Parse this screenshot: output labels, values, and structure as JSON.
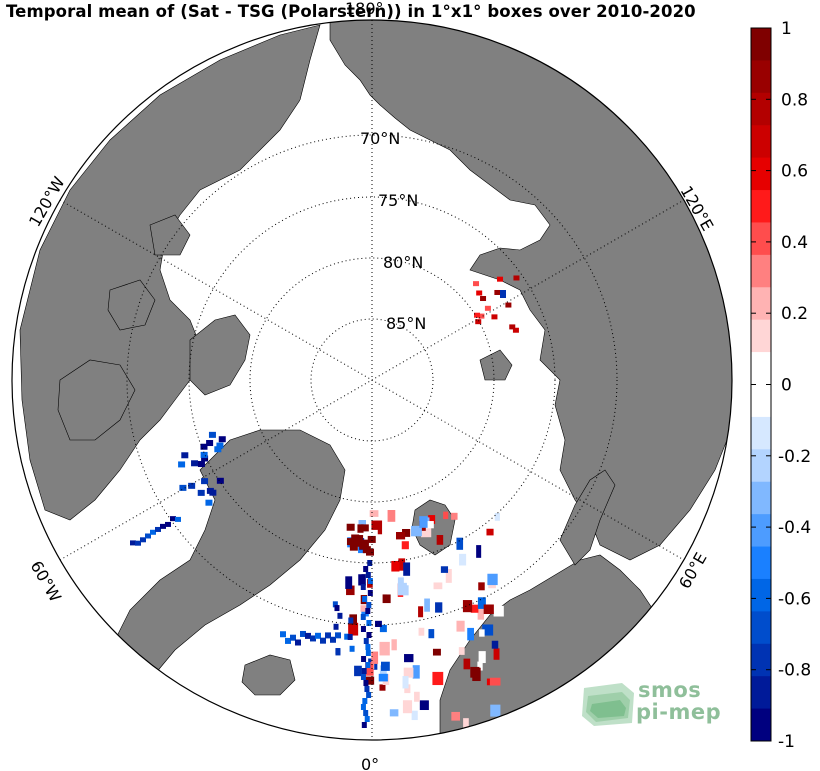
{
  "title": "Temporal mean of (Sat - TSG (Polarstern)) in 1°x1° boxes over 2010-2020",
  "map": {
    "projection": "north-polar-stereographic",
    "lat_labels": [
      "70°N",
      "75°N",
      "80°N",
      "85°N"
    ],
    "lat_circles": [
      70,
      75,
      80,
      85,
      87.5
    ],
    "lon_labels": [
      "180°",
      "120°E",
      "60°E",
      "0°",
      "60°W",
      "120°W"
    ],
    "land_color": "#808080",
    "ocean_color": "#ffffff"
  },
  "colorbar": {
    "min": -1,
    "max": 1,
    "tick_labels": [
      "1",
      "0.8",
      "0.6",
      "0.4",
      "0.2",
      "0",
      "-0.2",
      "-0.4",
      "-0.6",
      "-0.8",
      "-1"
    ],
    "colors": [
      "#7f0000",
      "#990000",
      "#b30000",
      "#cc0000",
      "#e60000",
      "#ff1a1a",
      "#ff4d4d",
      "#ff8080",
      "#ffb3b3",
      "#ffd6d6",
      "#ffffff",
      "#ffffff",
      "#d6e8ff",
      "#b3d4ff",
      "#80b8ff",
      "#4d9cff",
      "#1a80ff",
      "#0066e6",
      "#004dcc",
      "#0033b3",
      "#001a99",
      "#00007f"
    ]
  },
  "logo": {
    "line1": "smos",
    "line2": "pi-mep"
  }
}
